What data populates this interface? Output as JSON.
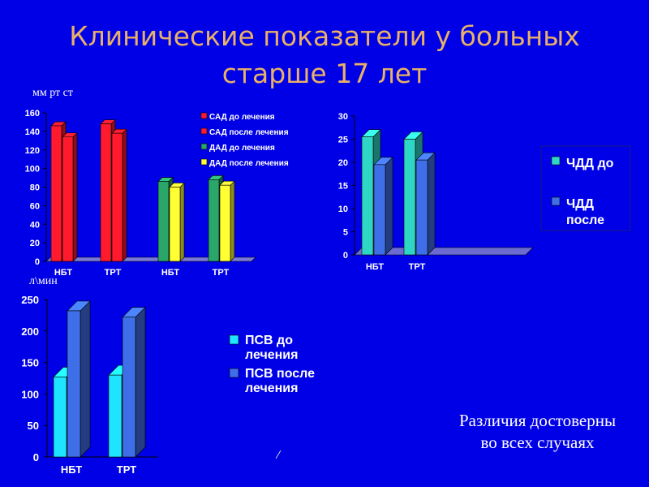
{
  "title_line1": "Клинические показатели у больных",
  "title_line2": "старше 17 лет",
  "unit_top": "мм рт ст",
  "unit_bottom": "л\\мин",
  "note_line1": "Различия достоверны",
  "note_line2": "во всех случаях",
  "colors": {
    "background": "#0000e6",
    "title": "#e8b068",
    "sad_before": "#ff1a2e",
    "sad_after": "#ff1a2e",
    "dad_before": "#2aa66a",
    "dad_after": "#ffff33",
    "chdd_before": "#2fd6c6",
    "chdd_after": "#3f6fe8",
    "psv_before": "#1fe4ff",
    "psv_after": "#3f6fe8"
  },
  "chart_data": [
    {
      "type": "bar",
      "title": "",
      "ylabel": "мм рт ст",
      "ylim": [
        0,
        160
      ],
      "yticks": [
        0,
        20,
        40,
        60,
        80,
        100,
        120,
        140,
        160
      ],
      "categories": [
        "НБТ",
        "ТРТ",
        "НБТ",
        "ТРТ"
      ],
      "legend_position": "right",
      "series": [
        {
          "name": "САД до лечения",
          "values": [
            146,
            148,
            null,
            null
          ]
        },
        {
          "name": "САД после лечения",
          "values": [
            134,
            138,
            null,
            null
          ]
        },
        {
          "name": "ДАД до лечения",
          "values": [
            null,
            null,
            86,
            88
          ]
        },
        {
          "name": "ДАД после лечения",
          "values": [
            null,
            null,
            80,
            82
          ]
        }
      ]
    },
    {
      "type": "bar",
      "title": "",
      "ylim": [
        0,
        30
      ],
      "yticks": [
        0,
        5,
        10,
        15,
        20,
        25,
        30
      ],
      "categories": [
        "НБТ",
        "ТРТ"
      ],
      "legend_position": "right",
      "series": [
        {
          "name": "ЧДД до",
          "values": [
            25.5,
            25
          ]
        },
        {
          "name": "ЧДД после",
          "values": [
            19.5,
            20.5
          ]
        }
      ]
    },
    {
      "type": "bar",
      "title": "",
      "ylabel": "л\\мин",
      "ylim": [
        0,
        250
      ],
      "yticks": [
        0,
        50,
        100,
        150,
        200,
        250
      ],
      "categories": [
        "НБТ",
        "ТРТ"
      ],
      "legend_position": "right",
      "series": [
        {
          "name": "ПСВ до лечения",
          "values": [
            127,
            130
          ]
        },
        {
          "name": "ПСВ после лечения",
          "values": [
            232,
            222
          ]
        }
      ]
    }
  ]
}
